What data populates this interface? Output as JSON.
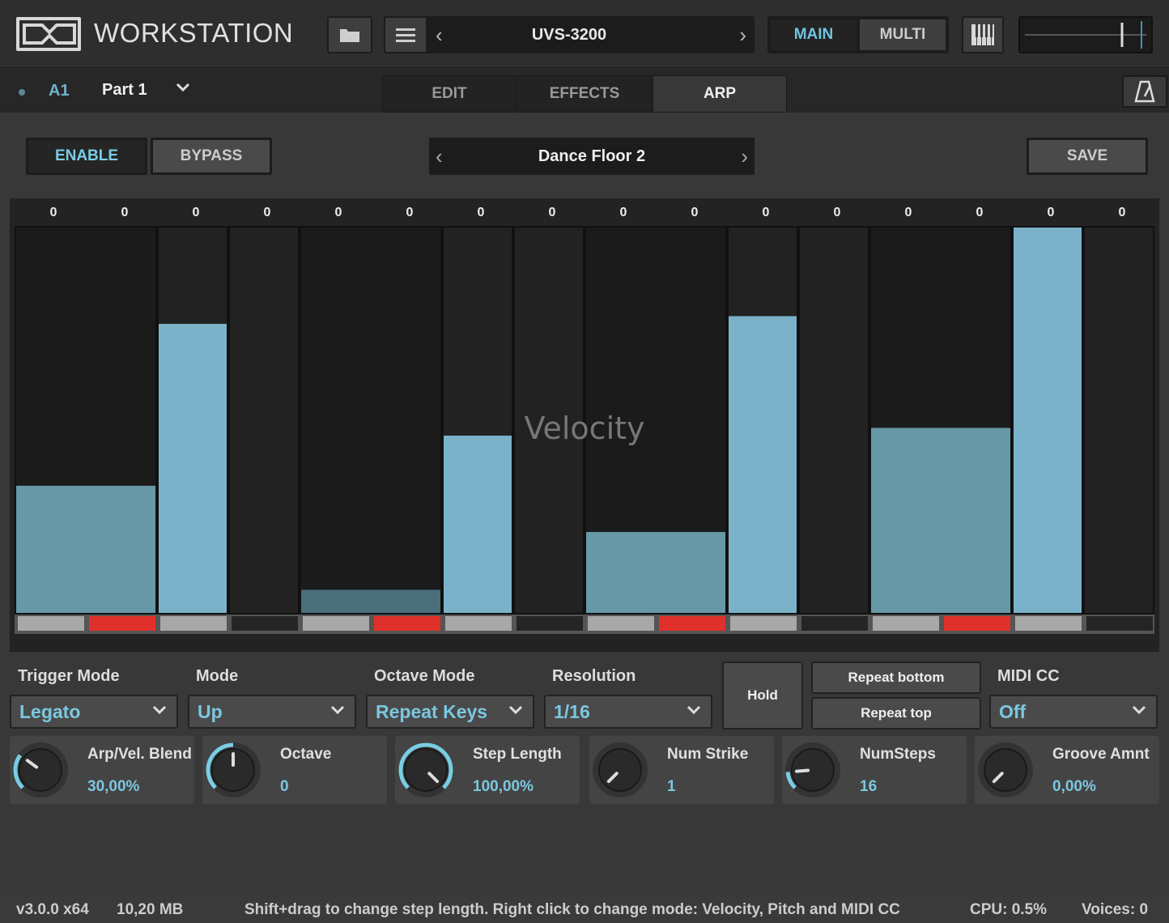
{
  "app": {
    "brand": "WORKSTATION",
    "preset_name": "UVS-3200",
    "mode_main": "MAIN",
    "mode_multi": "MULTI",
    "volume_level": 0.8
  },
  "part": {
    "id": "A1",
    "name": "Part 1"
  },
  "tabs": [
    "EDIT",
    "EFFECTS",
    "ARP"
  ],
  "active_tab": "ARP",
  "arp": {
    "enable_label": "ENABLE",
    "bypass_label": "BYPASS",
    "save_label": "SAVE",
    "preset_name": "Dance Floor 2",
    "grid_mode_label": "Velocity",
    "steps": [
      {
        "value_label": "0",
        "velocity": 0.33,
        "group": 0,
        "slot": "gray"
      },
      {
        "value_label": "0",
        "velocity": 0.33,
        "group": 0,
        "slot": "red"
      },
      {
        "value_label": "0",
        "velocity": 0.75,
        "group": 1,
        "slot": "gray"
      },
      {
        "value_label": "0",
        "velocity": 0.0,
        "group": 2,
        "slot": "off"
      },
      {
        "value_label": "0",
        "velocity": 0.06,
        "group": 3,
        "slot": "gray"
      },
      {
        "value_label": "0",
        "velocity": 0.06,
        "group": 3,
        "slot": "red"
      },
      {
        "value_label": "0",
        "velocity": 0.46,
        "group": 4,
        "slot": "gray"
      },
      {
        "value_label": "0",
        "velocity": 0.0,
        "group": 5,
        "slot": "off"
      },
      {
        "value_label": "0",
        "velocity": 0.21,
        "group": 6,
        "slot": "gray"
      },
      {
        "value_label": "0",
        "velocity": 0.21,
        "group": 6,
        "slot": "red"
      },
      {
        "value_label": "0",
        "velocity": 0.77,
        "group": 7,
        "slot": "gray"
      },
      {
        "value_label": "0",
        "velocity": 0.0,
        "group": 8,
        "slot": "off"
      },
      {
        "value_label": "0",
        "velocity": 0.48,
        "group": 9,
        "slot": "gray"
      },
      {
        "value_label": "0",
        "velocity": 0.48,
        "group": 9,
        "slot": "red"
      },
      {
        "value_label": "0",
        "velocity": 1.0,
        "group": 10,
        "slot": "gray"
      },
      {
        "value_label": "0",
        "velocity": 0.0,
        "group": 11,
        "slot": "off"
      }
    ],
    "params": {
      "trigger_mode": {
        "label": "Trigger Mode",
        "value": "Legato"
      },
      "mode": {
        "label": "Mode",
        "value": "Up"
      },
      "octave_mode": {
        "label": "Octave Mode",
        "value": "Repeat Keys"
      },
      "resolution": {
        "label": "Resolution",
        "value": "1/16"
      },
      "hold_label": "Hold",
      "repeat_bottom_label": "Repeat bottom",
      "repeat_top_label": "Repeat top",
      "midi_cc": {
        "label": "MIDI CC",
        "value": "Off"
      }
    },
    "knobs": [
      {
        "label": "Arp/Vel. Blend",
        "value": "30,00%",
        "level": 0.3
      },
      {
        "label": "Octave",
        "value": "0",
        "level": 0.5
      },
      {
        "label": "Step Length",
        "value": "100,00%",
        "level": 1.0
      },
      {
        "label": "Num Strike",
        "value": "1",
        "level": 0.0
      },
      {
        "label": "NumSteps",
        "value": "16",
        "level": 0.15
      },
      {
        "label": "Groove Amnt",
        "value": "0,00%",
        "level": 0.0
      }
    ]
  },
  "status": {
    "version": "v3.0.0 x64",
    "memory": "10,20 MB",
    "hint": "Shift+drag to change step length. Right click to change mode: Velocity, Pitch and MIDI CC",
    "cpu": "CPU: 0.5%",
    "voices": "Voices: 0"
  },
  "colors": {
    "accent": "#79cde3",
    "bar_bright": "#7ab3c9",
    "bar_mid": "#6698a8",
    "bar_dark": "#4a6e7a",
    "slot_red": "#e0302a",
    "slot_gray": "#a8a8a8"
  }
}
